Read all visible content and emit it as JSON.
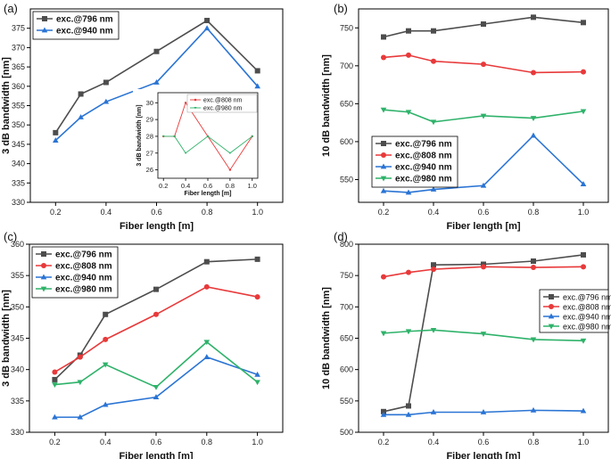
{
  "colors": {
    "796": "#4d4d4d",
    "808": "#e8393a",
    "940": "#2a74d4",
    "980": "#2fb26a"
  },
  "chart_data": [
    {
      "id": "a",
      "panel_label": "(a)",
      "type": "line",
      "xlabel": "Fiber length [m]",
      "ylabel": "3 dB bandwidth [nm]",
      "xlim": [
        0.1,
        1.1
      ],
      "ylim": [
        330,
        380
      ],
      "xticks": [
        "0.2",
        "0.4",
        "0.6",
        "0.8",
        "1.0"
      ],
      "yticks": [
        "330",
        "335",
        "340",
        "345",
        "350",
        "355",
        "360",
        "365",
        "370",
        "375"
      ],
      "legend": "top-left",
      "x": [
        0.2,
        0.3,
        0.4,
        0.6,
        0.8,
        1.0
      ],
      "series": [
        {
          "name": "exc.@796 nm",
          "color": "796",
          "marker": "square",
          "values": [
            348,
            358,
            361,
            369,
            377,
            364
          ]
        },
        {
          "name": "exc.@940 nm",
          "color": "940",
          "marker": "triangle-up",
          "values": [
            346,
            352,
            356,
            361,
            375,
            360
          ]
        }
      ],
      "inset": {
        "xlabel": "Fiber length [m]",
        "ylabel": "3 dB bandwidth [nm]",
        "xlim": [
          0.15,
          1.05
        ],
        "ylim": [
          25.5,
          30.6
        ],
        "xticks": [
          "0.2",
          "0.4",
          "0.6",
          "0.8",
          "1.0"
        ],
        "yticks": [
          "26",
          "27",
          "28",
          "29",
          "30"
        ],
        "x": [
          0.2,
          0.3,
          0.4,
          0.6,
          0.8,
          1.0
        ],
        "series": [
          {
            "name": "exc.@808 nm",
            "color": "808",
            "marker": "circle",
            "values": [
              28,
              28,
              30,
              28,
              26,
              28
            ]
          },
          {
            "name": "exc.@980 nm",
            "color": "980",
            "marker": "triangle-down",
            "values": [
              28,
              28,
              27,
              28,
              27,
              28
            ]
          }
        ]
      }
    },
    {
      "id": "b",
      "panel_label": "(b)",
      "type": "line",
      "xlabel": "Fiber length [m]",
      "ylabel": "10 dB bandwidth [nm]",
      "xlim": [
        0.1,
        1.1
      ],
      "ylim": [
        520,
        775
      ],
      "xticks": [
        "0.2",
        "0.4",
        "0.6",
        "0.8",
        "1.0"
      ],
      "yticks": [
        "550",
        "600",
        "650",
        "700",
        "750"
      ],
      "legend": "bottom-left",
      "x": [
        0.2,
        0.3,
        0.4,
        0.6,
        0.8,
        1.0
      ],
      "series": [
        {
          "name": "exc.@796 nm",
          "color": "796",
          "marker": "square",
          "values": [
            738,
            746,
            746,
            755,
            764,
            757
          ]
        },
        {
          "name": "exc.@808 nm",
          "color": "808",
          "marker": "circle",
          "values": [
            711,
            714,
            706,
            702,
            691,
            692
          ]
        },
        {
          "name": "exc.@940 nm",
          "color": "940",
          "marker": "triangle-up",
          "values": [
            535,
            533,
            537,
            542,
            608,
            544
          ]
        },
        {
          "name": "exc.@980 nm",
          "color": "980",
          "marker": "triangle-down",
          "values": [
            642,
            639,
            626,
            634,
            631,
            640
          ]
        }
      ]
    },
    {
      "id": "c",
      "panel_label": "(c)",
      "type": "line",
      "xlabel": "Fiber length [m]",
      "ylabel": "3 dB bandwidth [nm]",
      "xlim": [
        0.1,
        1.1
      ],
      "ylim": [
        330,
        360
      ],
      "xticks": [
        "0.2",
        "0.4",
        "0.6",
        "0.8",
        "1.0"
      ],
      "yticks": [
        "330",
        "335",
        "340",
        "345",
        "350",
        "355",
        "360"
      ],
      "legend": "top-left",
      "x": [
        0.2,
        0.3,
        0.4,
        0.6,
        0.8,
        1.0
      ],
      "series": [
        {
          "name": "exc.@796 nm",
          "color": "796",
          "marker": "square",
          "values": [
            338.4,
            342.3,
            348.8,
            352.8,
            357.2,
            357.6
          ]
        },
        {
          "name": "exc.@808 nm",
          "color": "808",
          "marker": "circle",
          "values": [
            339.6,
            342.0,
            344.8,
            348.8,
            353.2,
            351.6
          ]
        },
        {
          "name": "exc.@940 nm",
          "color": "940",
          "marker": "triangle-up",
          "values": [
            332.4,
            332.4,
            334.4,
            335.6,
            342.0,
            339.2
          ]
        },
        {
          "name": "exc.@980 nm",
          "color": "980",
          "marker": "triangle-down",
          "values": [
            337.6,
            338.0,
            340.8,
            337.2,
            344.4,
            338.0
          ]
        }
      ]
    },
    {
      "id": "d",
      "panel_label": "(d)",
      "type": "line",
      "xlabel": "Fiber length [m]",
      "ylabel": "10 dB bandwidth [nm]",
      "xlim": [
        0.1,
        1.1
      ],
      "ylim": [
        500,
        800
      ],
      "xticks": [
        "0.2",
        "0.4",
        "0.6",
        "0.8",
        "1.0"
      ],
      "yticks": [
        "500",
        "550",
        "600",
        "650",
        "700",
        "750",
        "800"
      ],
      "legend": "right",
      "x": [
        0.2,
        0.3,
        0.4,
        0.6,
        0.8,
        1.0
      ],
      "series": [
        {
          "name": "exc.@796 nm",
          "color": "796",
          "marker": "square",
          "values": [
            533,
            542,
            767,
            768,
            773,
            783
          ]
        },
        {
          "name": "exc.@808 nm",
          "color": "808",
          "marker": "circle",
          "values": [
            748,
            755,
            760,
            764,
            763,
            764
          ]
        },
        {
          "name": "exc.@940 nm",
          "color": "940",
          "marker": "triangle-up",
          "values": [
            528,
            528,
            532,
            532,
            535,
            534
          ]
        },
        {
          "name": "exc.@980 nm",
          "color": "980",
          "marker": "triangle-down",
          "values": [
            658,
            661,
            663,
            657,
            648,
            646
          ]
        }
      ]
    }
  ]
}
